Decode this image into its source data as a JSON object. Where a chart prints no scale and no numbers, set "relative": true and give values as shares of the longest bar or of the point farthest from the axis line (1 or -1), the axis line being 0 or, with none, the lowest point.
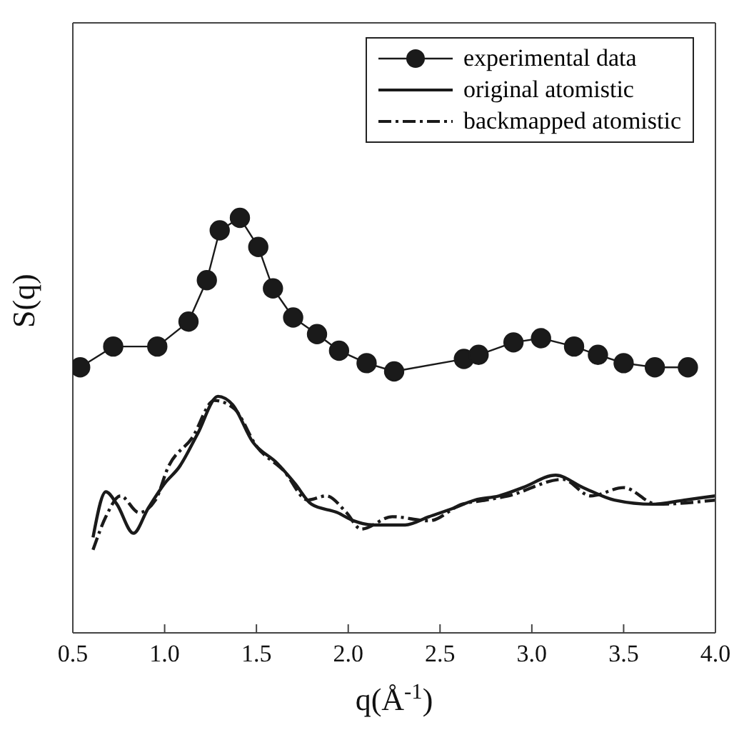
{
  "chart_data": {
    "type": "line",
    "relative": true,
    "xlabel": "q(Å$^{-1}$)",
    "ylabel": "S(q)",
    "xlim": [
      0.5,
      4.0
    ],
    "xticks": [
      0.5,
      {
        "value": 1,
        "label": "1.0"
      },
      1.5,
      {
        "value": 2,
        "label": "2.0"
      },
      2.5,
      {
        "value": 3,
        "label": "3.0"
      },
      3.5,
      {
        "value": 4,
        "label": "4.0"
      }
    ],
    "legend": "top right",
    "series": [
      {
        "name": "experimental data",
        "color": "#1a1a1a",
        "marker": "circle",
        "line_style": "solid",
        "x": [
          0.54,
          0.72,
          0.96,
          1.13,
          1.23,
          1.3,
          1.41,
          1.51,
          1.59,
          1.7,
          1.83,
          1.95,
          2.1,
          2.25,
          2.63,
          2.71,
          2.9,
          3.05,
          3.23,
          3.36,
          3.5,
          3.67,
          3.85
        ],
        "values": [
          0.64,
          0.69,
          0.69,
          0.75,
          0.85,
          0.97,
          1.0,
          0.93,
          0.83,
          0.76,
          0.72,
          0.68,
          0.65,
          0.63,
          0.66,
          0.67,
          0.7,
          0.71,
          0.69,
          0.67,
          0.65,
          0.64,
          0.64
        ]
      },
      {
        "name": "original atomistic",
        "color": "#1a1a1a",
        "marker": "none",
        "line_style": "solid",
        "x": [
          0.61,
          0.68,
          0.74,
          0.83,
          0.91,
          1.0,
          1.08,
          1.18,
          1.29,
          1.37,
          1.48,
          1.61,
          1.71,
          1.8,
          1.94,
          2.03,
          2.14,
          2.31,
          2.44,
          2.57,
          2.69,
          2.82,
          2.95,
          3.13,
          3.28,
          3.45,
          3.66,
          3.83,
          4.0
        ],
        "values": [
          0.23,
          0.34,
          0.31,
          0.24,
          0.3,
          0.36,
          0.4,
          0.48,
          0.57,
          0.55,
          0.46,
          0.41,
          0.36,
          0.31,
          0.29,
          0.27,
          0.26,
          0.26,
          0.28,
          0.3,
          0.32,
          0.33,
          0.35,
          0.38,
          0.35,
          0.32,
          0.31,
          0.32,
          0.33
        ]
      },
      {
        "name": "backmapped atomistic",
        "color": "#1a1a1a",
        "marker": "none",
        "line_style": "dashed",
        "x": [
          0.61,
          0.68,
          0.76,
          0.86,
          0.95,
          1.02,
          1.15,
          1.27,
          1.38,
          1.5,
          1.65,
          1.78,
          1.88,
          1.99,
          2.07,
          2.24,
          2.44,
          2.62,
          2.75,
          2.87,
          3.17,
          3.32,
          3.5,
          3.68,
          4.0
        ],
        "values": [
          0.2,
          0.28,
          0.33,
          0.29,
          0.32,
          0.4,
          0.47,
          0.56,
          0.54,
          0.45,
          0.39,
          0.32,
          0.33,
          0.29,
          0.25,
          0.28,
          0.27,
          0.31,
          0.32,
          0.33,
          0.37,
          0.33,
          0.35,
          0.31,
          0.32
        ]
      }
    ]
  }
}
